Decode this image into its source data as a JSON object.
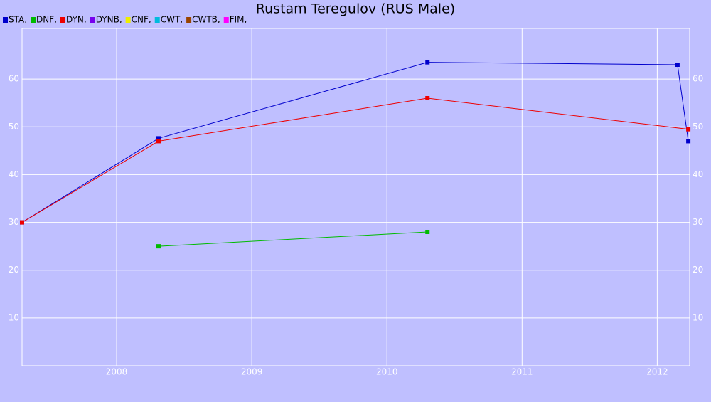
{
  "chart_data": {
    "type": "line",
    "title": "Rustam Teregulov (RUS Male)",
    "xlim": [
      2007.3,
      2012.24
    ],
    "xticks": [
      2008,
      2009,
      2010,
      2011,
      2012
    ],
    "ylim": [
      0,
      70
    ],
    "yticks": [
      10,
      20,
      30,
      40,
      50,
      60
    ],
    "grid": true,
    "legend": "top-left",
    "series": [
      {
        "name": "STA,",
        "color": "#0000cc",
        "x": [
          2007.3,
          2008.31,
          2010.3,
          2012.15,
          2012.23
        ],
        "values": [
          30,
          47.6,
          63.5,
          63,
          47
        ]
      },
      {
        "name": "DNF,",
        "color": "#00bb00",
        "x": [
          2008.31,
          2010.3
        ],
        "values": [
          25,
          28
        ]
      },
      {
        "name": "DYN,",
        "color": "#ee0000",
        "x": [
          2007.3,
          2008.31,
          2010.3,
          2012.23
        ],
        "values": [
          30,
          47,
          56,
          49.5
        ]
      },
      {
        "name": "DYNB,",
        "color": "#7700ee",
        "x": [],
        "values": []
      },
      {
        "name": "CNF,",
        "color": "#eeee00",
        "x": [],
        "values": []
      },
      {
        "name": "CWT,",
        "color": "#00bbdd",
        "x": [],
        "values": []
      },
      {
        "name": "CWTB,",
        "color": "#994400",
        "x": [],
        "values": []
      },
      {
        "name": "FIM,",
        "color": "#ff00ff",
        "x": [],
        "values": []
      }
    ]
  }
}
